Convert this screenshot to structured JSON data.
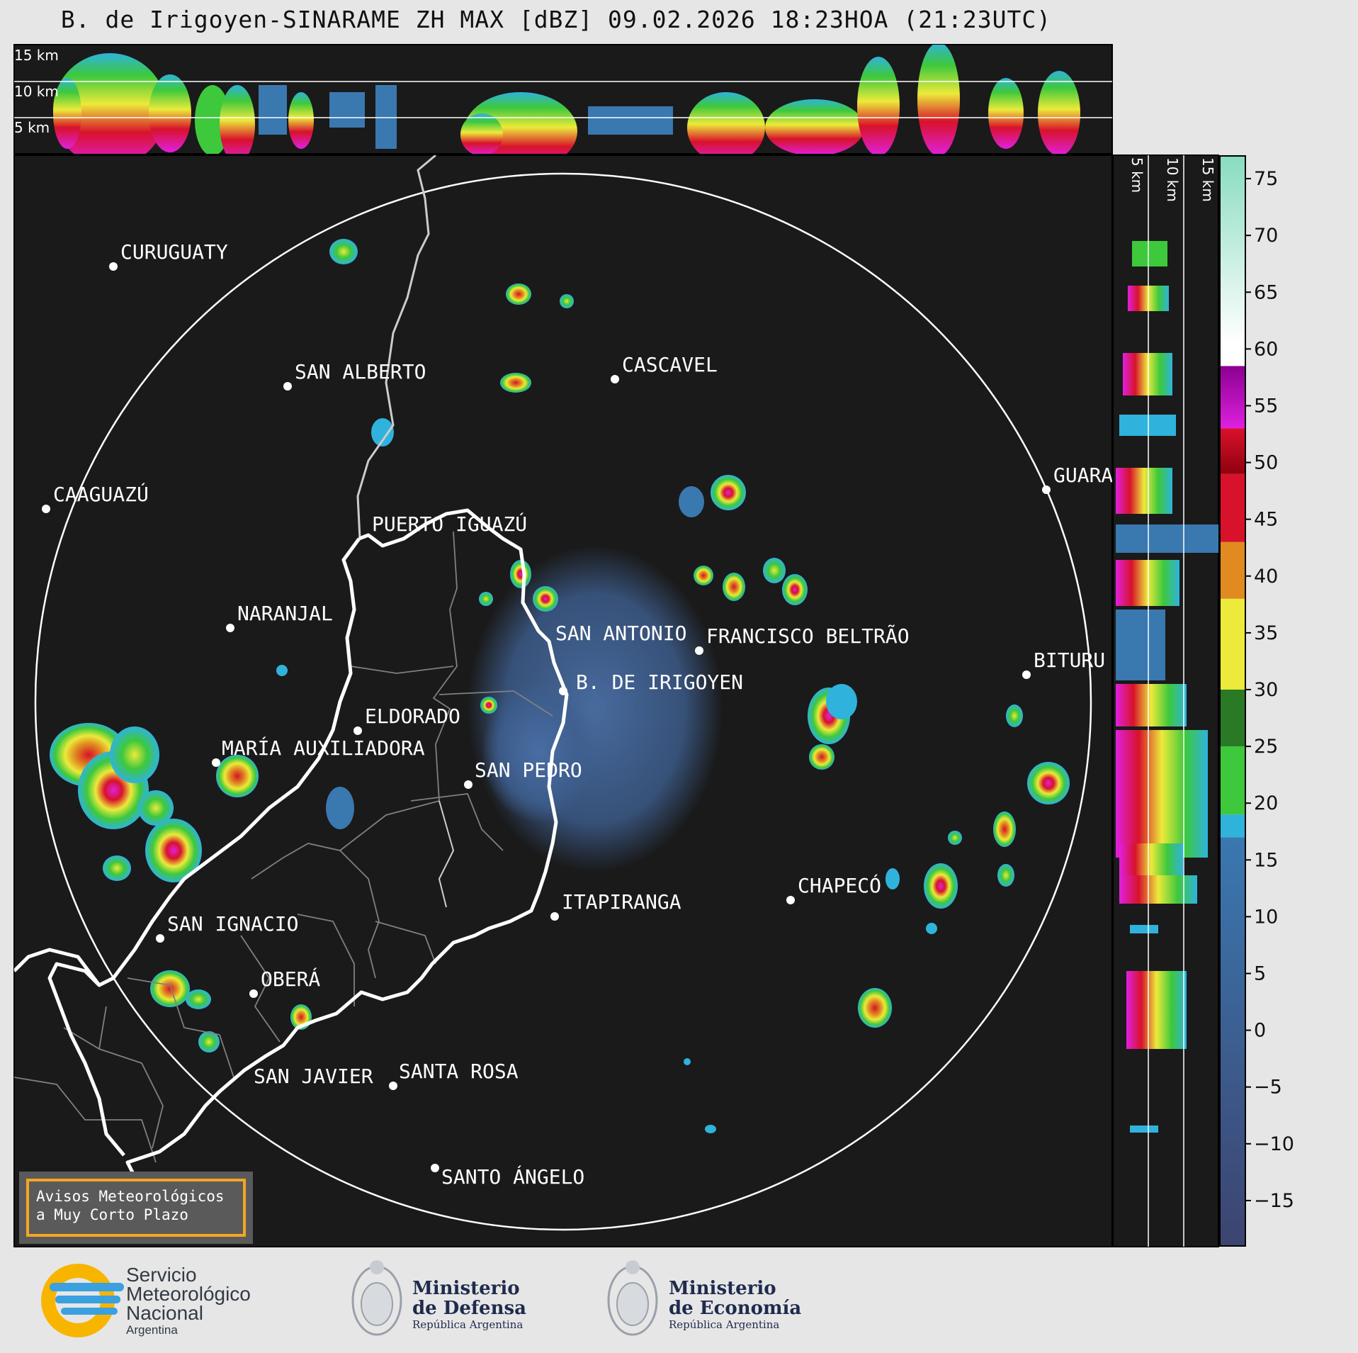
{
  "title": "B. de Irigoyen-SINARAME ZH MAX [dBZ] 09.02.2026 18:23HOA (21:23UTC)",
  "top_panel": {
    "labels": [
      "15 km",
      "10 km",
      "5 km"
    ]
  },
  "side_panel": {
    "labels": [
      "5 km",
      "10 km",
      "15 km"
    ]
  },
  "colorbar": {
    "ticks": [
      "75",
      "70",
      "65",
      "60",
      "55",
      "50",
      "45",
      "40",
      "35",
      "30",
      "25",
      "20",
      "15",
      "10",
      "5",
      "0",
      "−5",
      "−10",
      "−15"
    ],
    "colors": {
      "dark_blue": "#3d4470",
      "blue": "#3a78b0",
      "cyan": "#2fb3dc",
      "green": "#3ec83c",
      "dark_green": "#2a7a25",
      "yellow": "#ecea3a",
      "orange": "#e08a20",
      "red": "#d8122a",
      "dark_red": "#900010",
      "magenta": "#e020e0",
      "purple": "#8a0090",
      "white": "#ffffff",
      "mint": "#88dcc0"
    }
  },
  "cities": [
    {
      "name": "CURUGUATY"
    },
    {
      "name": "SAN ALBERTO"
    },
    {
      "name": "CASCAVEL"
    },
    {
      "name": "CAAGUAZÚ"
    },
    {
      "name": "GUARA"
    },
    {
      "name": "PUERTO IGUAZÚ"
    },
    {
      "name": "NARANJAL"
    },
    {
      "name": "SAN ANTONIO"
    },
    {
      "name": "FRANCISCO BELTRÃO"
    },
    {
      "name": "BITURU"
    },
    {
      "name": "B. DE IRIGOYEN"
    },
    {
      "name": "ELDORADO"
    },
    {
      "name": "MARÍA AUXILIADORA"
    },
    {
      "name": "SAN PEDRO"
    },
    {
      "name": "CHAPECÓ"
    },
    {
      "name": "ITAPIRANGA"
    },
    {
      "name": "SAN IGNACIO"
    },
    {
      "name": "OBERÁ"
    },
    {
      "name": "SAN JAVIER"
    },
    {
      "name": "SANTA ROSA"
    },
    {
      "name": "SANTO ÁNGELO"
    }
  ],
  "aviso": {
    "line1": "Avisos Meteorológicos",
    "line2": "a Muy Corto Plazo"
  },
  "logos": {
    "smn_line1": "Servicio",
    "smn_line2": "Meteorológico",
    "smn_line3": "Nacional",
    "smn_line4": "Argentina",
    "defensa_line1": "Ministerio",
    "defensa_line2": "de Defensa",
    "defensa_line3": "República Argentina",
    "economia_line1": "Ministerio",
    "economia_line2": "de Economía",
    "economia_line3": "República Argentina"
  }
}
